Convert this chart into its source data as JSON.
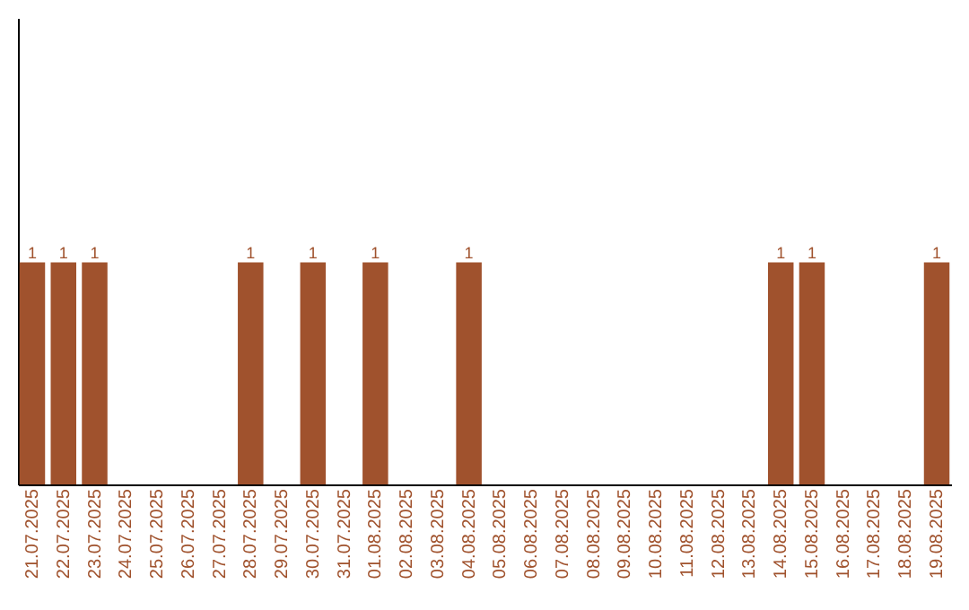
{
  "chart_data": {
    "type": "bar",
    "categories": [
      "21.07.2025",
      "22.07.2025",
      "23.07.2025",
      "24.07.2025",
      "25.07.2025",
      "26.07.2025",
      "27.07.2025",
      "28.07.2025",
      "29.07.2025",
      "30.07.2025",
      "31.07.2025",
      "01.08.2025",
      "02.08.2025",
      "03.08.2025",
      "04.08.2025",
      "05.08.2025",
      "06.08.2025",
      "07.08.2025",
      "08.08.2025",
      "09.08.2025",
      "10.08.2025",
      "11.08.2025",
      "12.08.2025",
      "13.08.2025",
      "14.08.2025",
      "15.08.2025",
      "16.08.2025",
      "17.08.2025",
      "18.08.2025",
      "19.08.2025"
    ],
    "values": [
      1,
      1,
      1,
      0,
      0,
      0,
      0,
      1,
      0,
      1,
      0,
      1,
      0,
      0,
      1,
      0,
      0,
      0,
      0,
      0,
      0,
      0,
      0,
      0,
      1,
      1,
      0,
      0,
      0,
      1
    ],
    "value_labels": [
      "1",
      "1",
      "1",
      null,
      null,
      null,
      null,
      "1",
      null,
      "1",
      null,
      "1",
      null,
      null,
      "1",
      null,
      null,
      null,
      null,
      null,
      null,
      null,
      null,
      null,
      "1",
      "1",
      null,
      null,
      null,
      "1"
    ],
    "color": "#a0522d",
    "ylim": [
      0,
      2.1
    ],
    "tick_labels": "x",
    "grid": false
  }
}
